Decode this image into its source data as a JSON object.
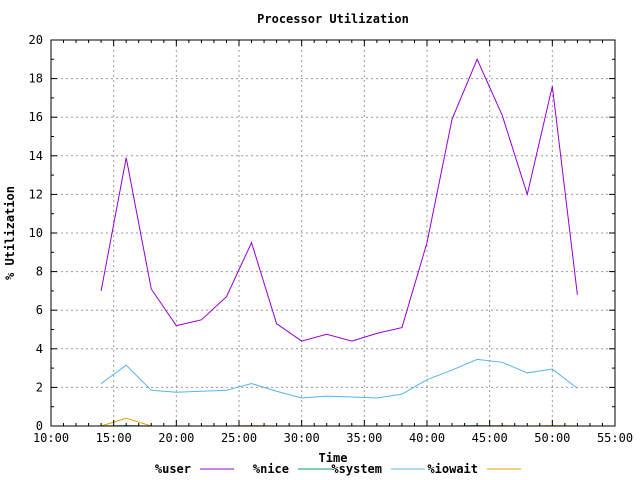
{
  "chart_data": {
    "type": "line",
    "title": "Processor Utilization",
    "xlabel": "Time",
    "ylabel": "% Utilization",
    "grid": true,
    "legend_position": "bottom",
    "xlim": [
      "10:00",
      "55:00"
    ],
    "ylim": [
      0,
      20
    ],
    "x_ticks": [
      "10:00",
      "15:00",
      "20:00",
      "25:00",
      "30:00",
      "35:00",
      "40:00",
      "45:00",
      "50:00",
      "55:00"
    ],
    "y_ticks": [
      0,
      2,
      4,
      6,
      8,
      10,
      12,
      14,
      16,
      18,
      20
    ],
    "x": [
      "14:00",
      "16:00",
      "18:00",
      "20:00",
      "22:00",
      "24:00",
      "26:00",
      "28:00",
      "30:00",
      "32:00",
      "34:00",
      "36:00",
      "38:00",
      "40:00",
      "42:00",
      "44:00",
      "46:00",
      "48:00",
      "50:00",
      "52:00"
    ],
    "series": [
      {
        "name": "%user",
        "color": "#9400d3",
        "values": [
          7.0,
          13.9,
          7.1,
          5.2,
          5.5,
          6.7,
          9.5,
          5.3,
          4.4,
          4.75,
          4.4,
          4.8,
          5.1,
          9.5,
          15.9,
          19.0,
          16.1,
          12.0,
          17.6,
          6.8
        ]
      },
      {
        "name": "%nice",
        "color": "#009e73",
        "values": [
          0,
          0.02,
          0,
          0,
          0,
          0,
          0,
          0,
          0,
          0,
          0,
          0,
          0,
          0,
          0,
          0.02,
          0,
          0,
          0,
          0
        ]
      },
      {
        "name": "%system",
        "color": "#56b4e9",
        "values": [
          2.2,
          3.15,
          1.85,
          1.75,
          1.8,
          1.85,
          2.2,
          1.8,
          1.45,
          1.55,
          1.5,
          1.45,
          1.65,
          2.4,
          2.9,
          3.45,
          3.3,
          2.75,
          2.95,
          1.95
        ]
      },
      {
        "name": "%iowait",
        "color": "#e69f00",
        "values": [
          0,
          0.4,
          0,
          0,
          0,
          0,
          0.02,
          0,
          0,
          0,
          0,
          0,
          0,
          0,
          0,
          0,
          0.02,
          0,
          0.02,
          0
        ]
      }
    ]
  }
}
